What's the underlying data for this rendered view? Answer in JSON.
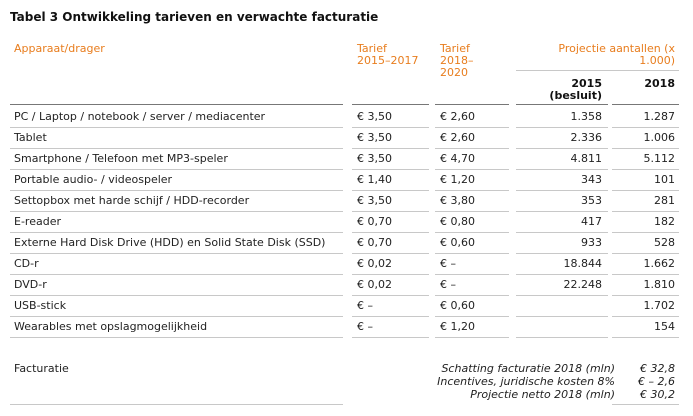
{
  "title": "Tabel 3 Ontwikkeling tarieven en verwachte facturatie",
  "header": {
    "col1": "Apparaat/drager",
    "col2_line1": "Tarief",
    "col2_line2": "2015–2017",
    "col3_line1": "Tarief",
    "col3_line2": "2018–",
    "col3_line3": "2020",
    "proj_line1": "Projectie aantallen (x",
    "proj_line2": "1.000)",
    "y2015_line1": "2015",
    "y2015_line2": "(besluit)",
    "y2018": "2018"
  },
  "rows": [
    {
      "name": "PC / Laptop / notebook / server / mediacenter",
      "t1": "€ 3,50",
      "t2": "€ 2,60",
      "p2015": "1.358",
      "p2018": "1.287"
    },
    {
      "name": "Tablet",
      "t1": "€ 3,50",
      "t2": "€ 2,60",
      "p2015": "2.336",
      "p2018": "1.006"
    },
    {
      "name": "Smartphone / Telefoon met MP3-speler",
      "t1": "€ 3,50",
      "t2": "€ 4,70",
      "p2015": "4.811",
      "p2018": "5.112"
    },
    {
      "name": "Portable audio- / videospeler",
      "t1": "€ 1,40",
      "t2": "€ 1,20",
      "p2015": "343",
      "p2018": "101"
    },
    {
      "name": "Settopbox met harde schijf / HDD-recorder",
      "t1": "€ 3,50",
      "t2": "€ 3,80",
      "p2015": "353",
      "p2018": "281"
    },
    {
      "name": "E-reader",
      "t1": "€ 0,70",
      "t2": "€ 0,80",
      "p2015": "417",
      "p2018": "182"
    },
    {
      "name": "Externe Hard Disk Drive (HDD) en Solid State Disk (SSD)",
      "t1": "€ 0,70",
      "t2": "€ 0,60",
      "p2015": "933",
      "p2018": "528"
    },
    {
      "name": "CD-r",
      "t1": "€ 0,02",
      "t2": "€ –",
      "p2015": "18.844",
      "p2018": "1.662"
    },
    {
      "name": "DVD-r",
      "t1": "€ 0,02",
      "t2": "€ –",
      "p2015": "22.248",
      "p2018": "1.810"
    },
    {
      "name": "USB-stick",
      "t1": "€ –",
      "t2": "€ 0,60",
      "p2015": "",
      "p2018": "1.702"
    },
    {
      "name": "Wearables met opslagmogelijkheid",
      "t1": "€ –",
      "t2": "€ 1,20",
      "p2015": "",
      "p2018": "154"
    }
  ],
  "footer": {
    "label": "Facturatie",
    "lines": [
      {
        "text": "Schatting facturatie 2018 (mln)",
        "value": "€ 32,8"
      },
      {
        "text": "Incentives, juridische kosten 8%",
        "value": "€ – 2,6"
      },
      {
        "text": "Projectie netto 2018 (mln)",
        "value": "€  30,2"
      }
    ]
  }
}
